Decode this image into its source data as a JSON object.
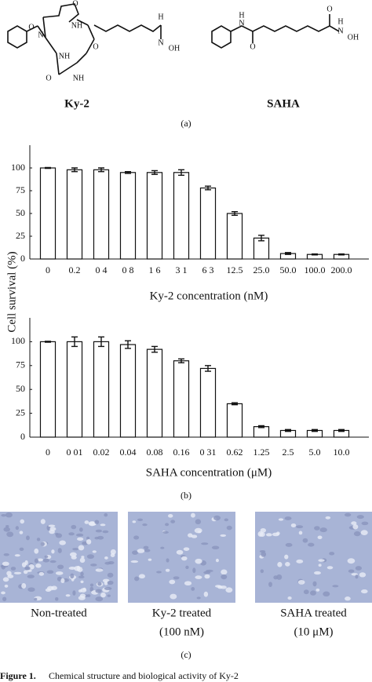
{
  "panel_a": {
    "ky2_name": "Ky-2",
    "saha_name": "SAHA",
    "label": "(a)",
    "ky2_atoms": [
      "N",
      "NH",
      "NH",
      "NH",
      "O",
      "O",
      "O",
      "O",
      "N",
      "OH",
      "H"
    ],
    "saha_atoms": [
      "H",
      "N",
      "O",
      "O",
      "N",
      "OH",
      "H"
    ]
  },
  "chart_data": [
    {
      "type": "bar",
      "ylabel": "Cell survival (%)",
      "xlabel": "Ky-2 concentration (nM)",
      "categories": [
        "0",
        "0.2",
        "0 4",
        "0 8",
        "1 6",
        "3 1",
        "6 3",
        "12.5",
        "25.0",
        "50.0",
        "100.0",
        "200.0"
      ],
      "values": [
        100,
        98,
        98,
        95,
        95,
        95,
        78,
        50,
        23,
        6,
        5,
        5
      ],
      "errors": [
        0.5,
        2,
        2,
        1,
        2,
        3,
        2,
        2,
        3,
        1,
        0.5,
        0.5
      ],
      "color": "#ffffff",
      "ylim": [
        0,
        125
      ],
      "yticks": [
        0,
        25,
        50,
        75,
        100
      ]
    },
    {
      "type": "bar",
      "xlabel": "SAHA concentration (μM)",
      "categories": [
        "0",
        "0 01",
        "0.02",
        "0.04",
        "0.08",
        "0.16",
        "0 31",
        "0.62",
        "1.25",
        "2.5",
        "5.0",
        "10.0"
      ],
      "values": [
        100,
        100,
        100,
        97,
        92,
        80,
        72,
        35,
        11,
        7,
        7,
        7
      ],
      "errors": [
        0.5,
        5,
        5,
        4,
        3,
        2,
        3,
        1,
        1,
        1,
        1,
        1
      ],
      "color": "#ffffff",
      "ylim": [
        0,
        125
      ],
      "yticks": [
        0,
        25,
        50,
        75,
        100
      ]
    }
  ],
  "panel_b_label": "(b)",
  "panel_c": {
    "captions": [
      [
        "Non-treated"
      ],
      [
        "Ky-2 treated",
        "(100 nM)"
      ],
      [
        "SAHA treated",
        "(10 μM)"
      ]
    ],
    "label": "(c)"
  },
  "caption": {
    "prefix": "Figure 1.",
    "text": "Chemical structure and biological activity of Ky-2"
  }
}
